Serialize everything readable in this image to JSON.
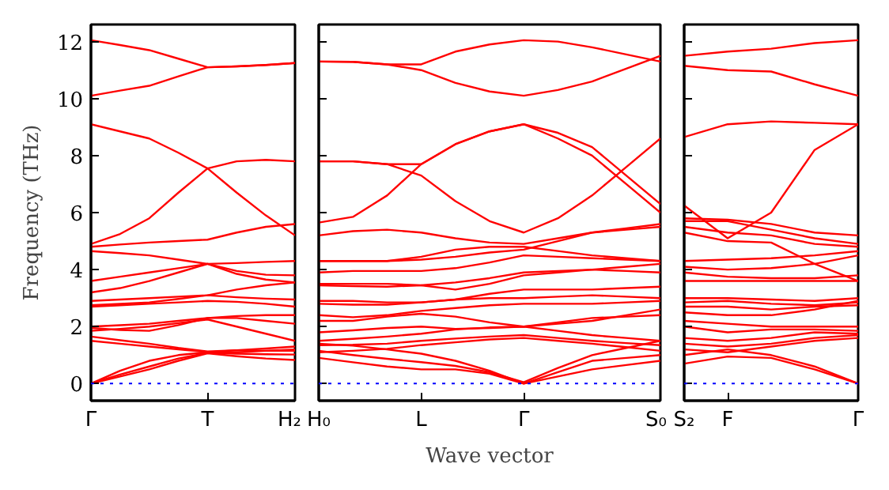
{
  "chart_data": [
    {
      "type": "line",
      "ylabel": "Frequency (THz)",
      "categories": [
        "Γ",
        null,
        null,
        null,
        "T",
        null,
        null,
        "H₂"
      ],
      "ylim": [
        -0.6,
        12.6
      ],
      "yticks": [
        0,
        2,
        4,
        6,
        8,
        10,
        12
      ],
      "line_style": "solid",
      "marker": "none",
      "ref_lines": [
        {
          "axis": "y",
          "value": 0,
          "color": "#0000ff",
          "line_style": "dotted"
        }
      ],
      "series": [
        {
          "color": "#ff0000",
          "values": [
            12.05,
            11.88,
            11.7,
            11.4,
            11.1,
            11.13,
            11.18,
            11.25
          ]
        },
        {
          "color": "#ff0000",
          "values": [
            10.1,
            10.28,
            10.45,
            10.78,
            11.1,
            11.13,
            11.18,
            11.25
          ]
        },
        {
          "color": "#ff0000",
          "values": [
            9.1,
            8.85,
            8.6,
            8.1,
            7.55,
            6.7,
            5.9,
            5.2
          ]
        },
        {
          "color": "#ff0000",
          "values": [
            4.9,
            5.25,
            5.8,
            6.7,
            7.55,
            7.8,
            7.85,
            7.8
          ]
        },
        {
          "color": "#ff0000",
          "values": [
            4.8,
            4.88,
            4.95,
            5.0,
            5.05,
            5.3,
            5.5,
            5.6
          ]
        },
        {
          "color": "#ff0000",
          "values": [
            4.65,
            4.58,
            4.5,
            4.35,
            4.2,
            3.95,
            3.82,
            3.8
          ]
        },
        {
          "color": "#ff0000",
          "values": [
            3.6,
            3.75,
            3.9,
            4.05,
            4.2,
            4.23,
            4.27,
            4.3
          ]
        },
        {
          "color": "#ff0000",
          "values": [
            3.2,
            3.35,
            3.6,
            3.9,
            4.2,
            3.85,
            3.65,
            3.55
          ]
        },
        {
          "color": "#ff0000",
          "values": [
            2.9,
            2.95,
            3.0,
            3.05,
            3.1,
            3.3,
            3.45,
            3.55
          ]
        },
        {
          "color": "#ff0000",
          "values": [
            2.75,
            2.8,
            2.85,
            2.97,
            3.1,
            3.03,
            2.98,
            2.95
          ]
        },
        {
          "color": "#ff0000",
          "values": [
            2.7,
            2.75,
            2.8,
            2.85,
            2.9,
            2.87,
            2.8,
            2.7
          ]
        },
        {
          "color": "#ff0000",
          "values": [
            2.0,
            2.05,
            2.1,
            2.2,
            2.3,
            2.3,
            2.2,
            2.1
          ]
        },
        {
          "color": "#ff0000",
          "values": [
            1.95,
            1.88,
            1.85,
            2.05,
            2.3,
            2.37,
            2.4,
            2.4
          ]
        },
        {
          "color": "#ff0000",
          "values": [
            1.85,
            1.92,
            2.0,
            2.12,
            2.25,
            2.0,
            1.75,
            1.5
          ]
        },
        {
          "color": "#ff0000",
          "values": [
            1.65,
            1.52,
            1.4,
            1.25,
            1.13,
            1.17,
            1.23,
            1.3
          ]
        },
        {
          "color": "#ff0000",
          "values": [
            1.5,
            1.4,
            1.3,
            1.2,
            1.11,
            1.1,
            1.15,
            1.2
          ]
        },
        {
          "color": "#ff0000",
          "values": [
            0,
            0.45,
            0.8,
            1.0,
            1.1,
            1.17,
            1.15,
            1.15
          ]
        },
        {
          "color": "#ff0000",
          "values": [
            0,
            0.32,
            0.6,
            0.88,
            1.08,
            1.05,
            1.03,
            1.02
          ]
        },
        {
          "color": "#ff0000",
          "values": [
            0,
            0.25,
            0.5,
            0.8,
            1.06,
            0.96,
            0.88,
            0.83
          ]
        }
      ]
    },
    {
      "type": "line",
      "xlabel": "Wave vector",
      "categories": [
        "H₀",
        null,
        null,
        "L",
        null,
        null,
        "Γ",
        null,
        null,
        null,
        "S₀"
      ],
      "ylim": [
        -0.6,
        12.6
      ],
      "yticks": [
        0,
        2,
        4,
        6,
        8,
        10,
        12
      ],
      "tick_labels": "x",
      "line_style": "solid",
      "marker": "none",
      "ref_lines": [
        {
          "axis": "y",
          "value": 0,
          "color": "#0000ff",
          "line_style": "dotted"
        }
      ],
      "series": [
        {
          "color": "#ff0000",
          "values": [
            11.3,
            11.29,
            11.2,
            11.2,
            11.65,
            11.9,
            12.05,
            12.0,
            11.8,
            11.55,
            11.3
          ]
        },
        {
          "color": "#ff0000",
          "values": [
            11.3,
            11.29,
            11.2,
            11.0,
            10.55,
            10.25,
            10.1,
            10.3,
            10.6,
            11.05,
            11.5
          ]
        },
        {
          "color": "#ff0000",
          "values": [
            7.8,
            7.8,
            7.7,
            7.7,
            8.4,
            8.85,
            9.1,
            8.8,
            8.3,
            7.3,
            6.3
          ]
        },
        {
          "color": "#ff0000",
          "values": [
            5.65,
            5.85,
            6.6,
            7.7,
            8.4,
            8.85,
            9.1,
            8.6,
            8.0,
            7.0,
            6.0
          ]
        },
        {
          "color": "#ff0000",
          "values": [
            7.8,
            7.8,
            7.7,
            7.3,
            6.4,
            5.7,
            5.3,
            5.8,
            6.6,
            7.6,
            8.6
          ]
        },
        {
          "color": "#ff0000",
          "values": [
            5.2,
            5.35,
            5.4,
            5.3,
            5.1,
            4.95,
            4.9,
            5.1,
            5.3,
            5.45,
            5.6
          ]
        },
        {
          "color": "#ff0000",
          "values": [
            4.3,
            4.3,
            4.3,
            4.35,
            4.45,
            4.6,
            4.7,
            5.0,
            5.3,
            5.4,
            5.5
          ]
        },
        {
          "color": "#ff0000",
          "values": [
            4.3,
            4.3,
            4.3,
            4.45,
            4.7,
            4.8,
            4.8,
            4.65,
            4.5,
            4.4,
            4.3
          ]
        },
        {
          "color": "#ff0000",
          "values": [
            3.9,
            3.95,
            3.95,
            3.95,
            4.05,
            4.25,
            4.5,
            4.45,
            4.4,
            4.35,
            4.3
          ]
        },
        {
          "color": "#ff0000",
          "values": [
            3.5,
            3.5,
            3.5,
            3.45,
            3.3,
            3.5,
            3.8,
            3.9,
            4.0,
            4.1,
            4.2
          ]
        },
        {
          "color": "#ff0000",
          "values": [
            3.45,
            3.42,
            3.4,
            3.45,
            3.55,
            3.7,
            3.9,
            3.95,
            4.0,
            3.95,
            3.9
          ]
        },
        {
          "color": "#ff0000",
          "values": [
            2.9,
            2.9,
            2.85,
            2.85,
            2.95,
            3.15,
            3.3,
            3.3,
            3.3,
            3.35,
            3.4
          ]
        },
        {
          "color": "#ff0000",
          "values": [
            2.8,
            2.77,
            2.77,
            2.85,
            2.95,
            3.0,
            3.0,
            3.05,
            3.1,
            3.05,
            3.0
          ]
        },
        {
          "color": "#ff0000",
          "values": [
            2.4,
            2.33,
            2.4,
            2.55,
            2.65,
            2.75,
            2.8,
            2.8,
            2.8,
            2.85,
            2.9
          ]
        },
        {
          "color": "#ff0000",
          "values": [
            2.2,
            2.2,
            2.35,
            2.45,
            2.35,
            2.15,
            2.0,
            2.1,
            2.2,
            2.4,
            2.6
          ]
        },
        {
          "color": "#ff0000",
          "values": [
            1.8,
            1.87,
            1.95,
            2.0,
            1.92,
            1.95,
            2.0,
            2.15,
            2.3,
            2.35,
            2.4
          ]
        },
        {
          "color": "#ff0000",
          "values": [
            1.5,
            1.57,
            1.65,
            1.75,
            1.9,
            1.97,
            2.0,
            1.85,
            1.7,
            1.6,
            1.5
          ]
        },
        {
          "color": "#ff0000",
          "values": [
            1.35,
            1.36,
            1.4,
            1.5,
            1.58,
            1.65,
            1.7,
            1.6,
            1.5,
            1.42,
            1.35
          ]
        },
        {
          "color": "#ff0000",
          "values": [
            1.1,
            1.15,
            1.22,
            1.35,
            1.45,
            1.55,
            1.6,
            1.5,
            1.4,
            1.28,
            1.15
          ]
        },
        {
          "color": "#ff0000",
          "values": [
            1.15,
            1.0,
            0.87,
            0.75,
            0.62,
            0.4,
            0.05,
            0.55,
            1.0,
            1.25,
            1.5
          ]
        },
        {
          "color": "#ff0000",
          "values": [
            1.4,
            1.33,
            1.2,
            1.05,
            0.8,
            0.45,
            0.0,
            0.4,
            0.8,
            0.9,
            1.0
          ]
        },
        {
          "color": "#ff0000",
          "values": [
            0.9,
            0.75,
            0.6,
            0.5,
            0.5,
            0.35,
            0.0,
            0.25,
            0.5,
            0.65,
            0.8
          ]
        }
      ]
    },
    {
      "type": "line",
      "categories": [
        "S₂",
        "F",
        null,
        null,
        "Γ"
      ],
      "ylim": [
        -0.6,
        12.6
      ],
      "yticks": [
        0,
        2,
        4,
        6,
        8,
        10,
        12
      ],
      "tick_labels": "x",
      "line_style": "solid",
      "marker": "none",
      "ref_lines": [
        {
          "axis": "y",
          "value": 0,
          "color": "#0000ff",
          "line_style": "dotted"
        }
      ],
      "series": [
        {
          "color": "#ff0000",
          "values": [
            11.5,
            11.65,
            11.75,
            11.95,
            12.05
          ]
        },
        {
          "color": "#ff0000",
          "values": [
            11.15,
            11.0,
            10.95,
            10.5,
            10.1
          ]
        },
        {
          "color": "#ff0000",
          "values": [
            8.65,
            9.1,
            9.2,
            9.15,
            9.1
          ]
        },
        {
          "color": "#ff0000",
          "values": [
            6.25,
            5.1,
            6.0,
            8.2,
            9.1
          ]
        },
        {
          "color": "#ff0000",
          "values": [
            5.8,
            5.75,
            5.6,
            5.3,
            5.2
          ]
        },
        {
          "color": "#ff0000",
          "values": [
            5.7,
            5.7,
            5.4,
            5.1,
            4.9
          ]
        },
        {
          "color": "#ff0000",
          "values": [
            5.5,
            5.3,
            5.2,
            4.9,
            4.8
          ]
        },
        {
          "color": "#ff0000",
          "values": [
            5.3,
            5.0,
            4.95,
            4.2,
            3.6
          ]
        },
        {
          "color": "#ff0000",
          "values": [
            4.3,
            4.35,
            4.4,
            4.5,
            4.65
          ]
        },
        {
          "color": "#ff0000",
          "values": [
            4.1,
            4.0,
            4.05,
            4.2,
            4.5
          ]
        },
        {
          "color": "#ff0000",
          "values": [
            3.9,
            3.75,
            3.7,
            3.7,
            3.8
          ]
        },
        {
          "color": "#ff0000",
          "values": [
            3.6,
            3.6,
            3.6,
            3.6,
            3.6
          ]
        },
        {
          "color": "#ff0000",
          "values": [
            3.0,
            3.0,
            2.95,
            2.9,
            3.0
          ]
        },
        {
          "color": "#ff0000",
          "values": [
            2.85,
            2.9,
            2.8,
            2.75,
            2.85
          ]
        },
        {
          "color": "#ff0000",
          "values": [
            2.7,
            2.7,
            2.6,
            2.7,
            2.75
          ]
        },
        {
          "color": "#ff0000",
          "values": [
            2.5,
            2.4,
            2.4,
            2.6,
            2.9
          ]
        },
        {
          "color": "#ff0000",
          "values": [
            2.2,
            2.1,
            2.0,
            2.0,
            2.0
          ]
        },
        {
          "color": "#ff0000",
          "values": [
            2.0,
            1.8,
            1.9,
            1.9,
            1.85
          ]
        },
        {
          "color": "#ff0000",
          "values": [
            1.6,
            1.5,
            1.6,
            1.8,
            1.75
          ]
        },
        {
          "color": "#ff0000",
          "values": [
            1.4,
            1.3,
            1.4,
            1.6,
            1.7
          ]
        },
        {
          "color": "#ff0000",
          "values": [
            1.2,
            1.1,
            1.3,
            1.5,
            1.6
          ]
        },
        {
          "color": "#ff0000",
          "values": [
            1.0,
            1.2,
            1.0,
            0.6,
            0.0
          ]
        },
        {
          "color": "#ff0000",
          "values": [
            0.7,
            0.95,
            0.9,
            0.5,
            0.0
          ]
        }
      ]
    }
  ]
}
